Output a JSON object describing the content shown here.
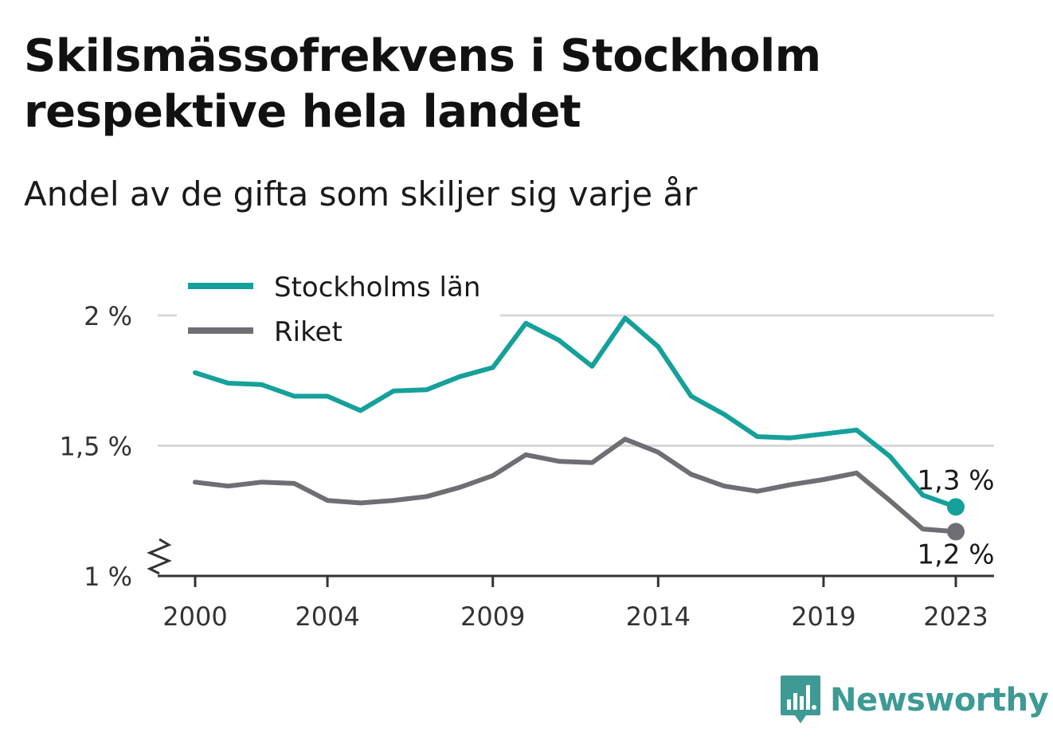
{
  "title": "Skilsmässofrekvens i Stockholm respektive hela landet",
  "subtitle": "Andel av de gifta som skiljer sig varje år",
  "brand": {
    "name": "Newsworthy",
    "color": "#3d9a95",
    "icon": "bar-chart-badge-icon"
  },
  "colors": {
    "stockholm": "#16a09a",
    "riket": "#6e6e74",
    "grid": "#d9d9d9",
    "axis": "#333333"
  },
  "chart_data": {
    "type": "line",
    "title": "Skilsmässofrekvens i Stockholm respektive hela landet",
    "subtitle": "Andel av de gifta som skiljer sig varje år",
    "ylim": [
      1.0,
      2.0
    ],
    "y_axis_break": true,
    "yticks": [
      1.0,
      1.5,
      2.0
    ],
    "ytick_labels": [
      "1 %",
      "1,5 %",
      "2 %"
    ],
    "xticks": [
      2000,
      2004,
      2009,
      2014,
      2019,
      2023
    ],
    "xtick_labels": [
      "2000",
      "2004",
      "2009",
      "2014",
      "2019",
      "2023"
    ],
    "grid": true,
    "legend_position": "top-left",
    "x": [
      2000,
      2001,
      2002,
      2003,
      2004,
      2005,
      2006,
      2007,
      2008,
      2009,
      2010,
      2011,
      2012,
      2013,
      2014,
      2015,
      2016,
      2017,
      2018,
      2019,
      2020,
      2021,
      2022,
      2023
    ],
    "series": [
      {
        "name": "Stockholms län",
        "color": "#16a09a",
        "end_label": "1,3 %",
        "values": [
          1.78,
          1.74,
          1.735,
          1.69,
          1.69,
          1.635,
          1.71,
          1.715,
          1.765,
          1.8,
          1.97,
          1.905,
          1.805,
          1.99,
          1.88,
          1.69,
          1.62,
          1.535,
          1.53,
          1.545,
          1.56,
          1.46,
          1.31,
          1.265
        ]
      },
      {
        "name": "Riket",
        "color": "#6e6e74",
        "end_label": "1,2 %",
        "values": [
          1.36,
          1.345,
          1.36,
          1.355,
          1.29,
          1.28,
          1.29,
          1.305,
          1.34,
          1.385,
          1.465,
          1.44,
          1.435,
          1.525,
          1.475,
          1.39,
          1.345,
          1.325,
          1.35,
          1.37,
          1.395,
          1.29,
          1.18,
          1.17
        ]
      }
    ]
  }
}
